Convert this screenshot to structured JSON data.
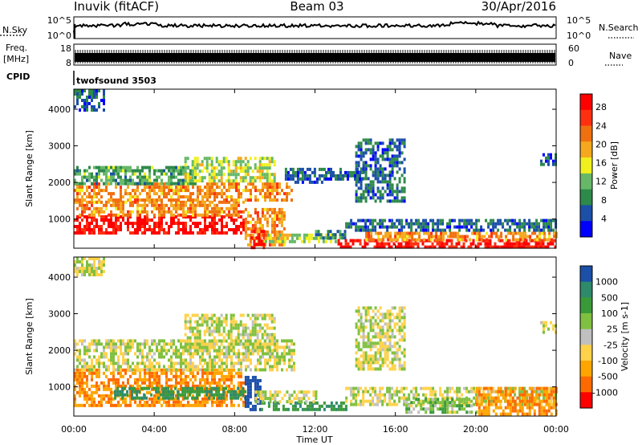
{
  "header": {
    "title": "Inuvik (fitACF)",
    "beam": "Beam 03",
    "date": "30/Apr/2016"
  },
  "summary_rows": {
    "nsky_label": "N.Sky",
    "nsky_ticks": [
      "10^5",
      "10^0"
    ],
    "nsearch_label": "N.Search",
    "freq_label_line1": "Freq.",
    "freq_label_line2": "[MHz]",
    "freq_ticks": [
      "18",
      "8"
    ],
    "nave_ticks": [
      "60",
      "0"
    ],
    "nave_label": "Nave",
    "cpid_label": "CPID",
    "cpid_value": "twofsound 3503"
  },
  "colors": {
    "power": [
      "#0000ff",
      "#1b4fa8",
      "#2e8a4a",
      "#66b868",
      "#f0f01e",
      "#f5a81e",
      "#f07010",
      "#ff3010",
      "#ff0000"
    ],
    "velocity": [
      "#ff0000",
      "#ff6a00",
      "#ffa500",
      "#ffd24a",
      "#c0c0c0",
      "#80c040",
      "#3a9a3a",
      "#2e8a6a",
      "#1b4fa8"
    ]
  },
  "chart_data": [
    {
      "type": "heatmap",
      "name": "power",
      "xlabel": "",
      "ylabel": "Slant Range [km]",
      "y_ticks": [
        1000,
        2000,
        3000,
        4000
      ],
      "ylim": [
        200,
        4550
      ],
      "xlim_hours": [
        0,
        24
      ],
      "colorbar_label": "Power [dB]",
      "colorbar_ticks": [
        "4",
        "8",
        "12",
        "16",
        "20",
        "24",
        "28"
      ],
      "colorbar_range": [
        0,
        30
      ],
      "regions": [
        {
          "t0": 0.0,
          "t1": 8.5,
          "r0": 600,
          "r1": 1100,
          "v": 28
        },
        {
          "t0": 0.0,
          "t1": 8.5,
          "r0": 1100,
          "r1": 1500,
          "v": 20
        },
        {
          "t0": 0.0,
          "t1": 10.8,
          "r0": 1500,
          "r1": 2000,
          "v": 20
        },
        {
          "t0": 0.0,
          "t1": 6.0,
          "r0": 2000,
          "r1": 2450,
          "v": 10
        },
        {
          "t0": 5.5,
          "t1": 10.0,
          "r0": 2000,
          "r1": 2700,
          "v": 14
        },
        {
          "t0": 8.5,
          "t1": 10.5,
          "r0": 300,
          "r1": 1300,
          "v": 20
        },
        {
          "t0": 8.8,
          "t1": 9.4,
          "r0": 200,
          "r1": 700,
          "v": 28
        },
        {
          "t0": 9.5,
          "t1": 13.0,
          "r0": 400,
          "r1": 600,
          "v": 14
        },
        {
          "t0": 12.0,
          "t1": 13.5,
          "r0": 500,
          "r1": 700,
          "v": 8
        },
        {
          "t0": 13.0,
          "t1": 24.0,
          "r0": 200,
          "r1": 450,
          "v": 28
        },
        {
          "t0": 14.5,
          "t1": 24.0,
          "r0": 450,
          "r1": 650,
          "v": 20
        },
        {
          "t0": 13.5,
          "t1": 24.0,
          "r0": 650,
          "r1": 1000,
          "v": 6
        },
        {
          "t0": 14.0,
          "t1": 16.5,
          "r0": 1500,
          "r1": 3200,
          "v": 6
        },
        {
          "t0": 10.5,
          "t1": 12.5,
          "r0": 2000,
          "r1": 2400,
          "v": 6
        },
        {
          "t0": 12.5,
          "t1": 14.5,
          "r0": 2100,
          "r1": 2400,
          "v": 6
        },
        {
          "t0": 0.0,
          "t1": 1.5,
          "r0": 4000,
          "r1": 4550,
          "v": 6
        },
        {
          "t0": 23.2,
          "t1": 24.0,
          "r0": 2500,
          "r1": 2800,
          "v": 6
        }
      ]
    },
    {
      "type": "heatmap",
      "name": "velocity",
      "xlabel": "Time UT",
      "ylabel": "Slant Range [km]",
      "x_ticks": [
        "00:00",
        "04:00",
        "08:00",
        "12:00",
        "16:00",
        "20:00",
        "00:00"
      ],
      "x_tick_hours": [
        0,
        4,
        8,
        12,
        16,
        20,
        24
      ],
      "y_ticks": [
        1000,
        2000,
        3000,
        4000
      ],
      "ylim": [
        200,
        4550
      ],
      "xlim_hours": [
        0,
        24
      ],
      "colorbar_label": "Velocity [m s-1]",
      "colorbar_ticks": [
        "1000",
        "500",
        "100",
        "25",
        "-25",
        "-100",
        "-500",
        "-1000"
      ],
      "colorbar_range": [
        -1000,
        1000
      ],
      "regions": [
        {
          "t0": 0.0,
          "t1": 8.5,
          "r0": 500,
          "r1": 1500,
          "v": -300
        },
        {
          "t0": 2.0,
          "t1": 8.5,
          "r0": 700,
          "r1": 1000,
          "v": 300
        },
        {
          "t0": 0.0,
          "t1": 11.0,
          "r0": 1500,
          "r1": 2300,
          "v": 0
        },
        {
          "t0": 5.5,
          "t1": 10.0,
          "r0": 2000,
          "r1": 3000,
          "v": 0
        },
        {
          "t0": 8.5,
          "t1": 9.3,
          "r0": 400,
          "r1": 1300,
          "v": 800
        },
        {
          "t0": 9.3,
          "t1": 13.5,
          "r0": 400,
          "r1": 600,
          "v": 300
        },
        {
          "t0": 9.0,
          "t1": 12.0,
          "r0": 600,
          "r1": 900,
          "v": 0
        },
        {
          "t0": 13.5,
          "t1": 24.0,
          "r0": 500,
          "r1": 1000,
          "v": 0
        },
        {
          "t0": 14.0,
          "t1": 16.5,
          "r0": 1500,
          "r1": 3200,
          "v": 0
        },
        {
          "t0": 16.5,
          "t1": 20.0,
          "r0": 300,
          "r1": 700,
          "v": 80
        },
        {
          "t0": 20.0,
          "t1": 24.0,
          "r0": 250,
          "r1": 1000,
          "v": -300
        },
        {
          "t0": 0.0,
          "t1": 1.5,
          "r0": 4100,
          "r1": 4550,
          "v": 0
        },
        {
          "t0": 23.2,
          "t1": 24.0,
          "r0": 2500,
          "r1": 2800,
          "v": 0
        }
      ]
    }
  ]
}
